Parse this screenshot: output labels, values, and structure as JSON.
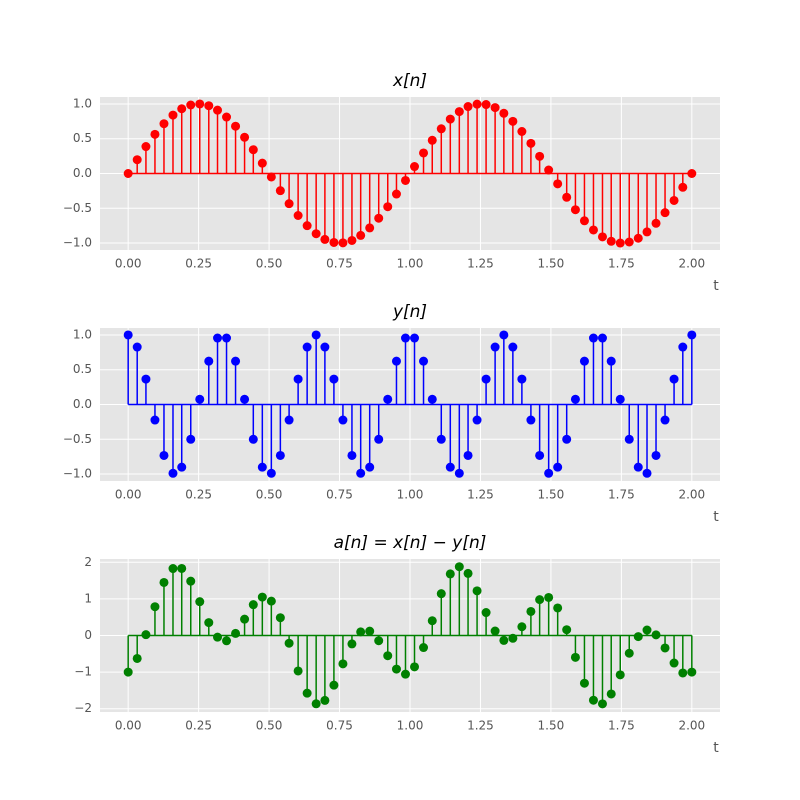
{
  "chart_data": [
    {
      "type": "stem",
      "title": "x[n]",
      "xlabel": "t",
      "x": [
        0,
        0.032,
        0.063,
        0.095,
        0.127,
        0.159,
        0.19,
        0.222,
        0.254,
        0.286,
        0.317,
        0.349,
        0.381,
        0.413,
        0.444,
        0.476,
        0.508,
        0.54,
        0.571,
        0.603,
        0.635,
        0.667,
        0.698,
        0.73,
        0.762,
        0.794,
        0.825,
        0.857,
        0.889,
        0.921,
        0.952,
        0.984,
        1.016,
        1.048,
        1.079,
        1.111,
        1.143,
        1.175,
        1.206,
        1.238,
        1.27,
        1.302,
        1.333,
        1.365,
        1.397,
        1.429,
        1.46,
        1.492,
        1.524,
        1.556,
        1.587,
        1.619,
        1.651,
        1.683,
        1.714,
        1.746,
        1.778,
        1.81,
        1.841,
        1.873,
        1.905,
        1.937,
        1.968,
        2
      ],
      "series": [
        {
          "color": "#ff0000",
          "values": [
            0,
            0.198,
            0.388,
            0.563,
            0.716,
            0.84,
            0.931,
            0.985,
            1.0,
            0.975,
            0.911,
            0.812,
            0.68,
            0.521,
            0.342,
            0.149,
            -0.05,
            -0.247,
            -0.434,
            -0.604,
            -0.75,
            -0.866,
            -0.948,
            -0.992,
            -0.997,
            -0.963,
            -0.89,
            -0.782,
            -0.643,
            -0.478,
            -0.295,
            -0.1,
            0.1,
            0.295,
            0.478,
            0.643,
            0.782,
            0.89,
            0.963,
            0.997,
            0.992,
            0.948,
            0.866,
            0.75,
            0.604,
            0.434,
            0.247,
            0.05,
            -0.149,
            -0.342,
            -0.521,
            -0.68,
            -0.812,
            -0.911,
            -0.975,
            -1.0,
            -0.985,
            -0.931,
            -0.84,
            -0.716,
            -0.563,
            -0.388,
            -0.198,
            0
          ]
        }
      ],
      "xlim": [
        -0.1,
        2.1
      ],
      "ylim": [
        -1.1,
        1.1
      ],
      "xticks": [
        {
          "value": 0,
          "label": "0.00"
        },
        {
          "value": 0.25,
          "label": "0.25"
        },
        {
          "value": 0.5,
          "label": "0.50"
        },
        {
          "value": 0.75,
          "label": "0.75"
        },
        {
          "value": 1,
          "label": "1.00"
        },
        {
          "value": 1.25,
          "label": "1.25"
        },
        {
          "value": 1.5,
          "label": "1.50"
        },
        {
          "value": 1.75,
          "label": "1.75"
        },
        {
          "value": 2,
          "label": "2.00"
        }
      ],
      "yticks": [
        {
          "value": -1,
          "label": "−1.0"
        },
        {
          "value": -0.5,
          "label": "−0.5"
        },
        {
          "value": 0,
          "label": "0.0"
        },
        0.5,
        {
          "value": 1,
          "label": "1.0"
        }
      ],
      "grid": true
    },
    {
      "type": "stem",
      "title": "y[n]",
      "xlabel": "t",
      "x": [
        0,
        0.032,
        0.063,
        0.095,
        0.127,
        0.159,
        0.19,
        0.222,
        0.254,
        0.286,
        0.317,
        0.349,
        0.381,
        0.413,
        0.444,
        0.476,
        0.508,
        0.54,
        0.571,
        0.603,
        0.635,
        0.667,
        0.698,
        0.73,
        0.762,
        0.794,
        0.825,
        0.857,
        0.889,
        0.921,
        0.952,
        0.984,
        1.016,
        1.048,
        1.079,
        1.111,
        1.143,
        1.175,
        1.206,
        1.238,
        1.27,
        1.302,
        1.333,
        1.365,
        1.397,
        1.429,
        1.46,
        1.492,
        1.524,
        1.556,
        1.587,
        1.619,
        1.651,
        1.683,
        1.714,
        1.746,
        1.778,
        1.81,
        1.841,
        1.873,
        1.905,
        1.937,
        1.968,
        2
      ],
      "series": [
        {
          "color": "#0000ff",
          "values": [
            1,
            0.826,
            0.365,
            -0.223,
            -0.733,
            -0.989,
            -0.901,
            -0.5,
            0.075,
            0.623,
            0.956,
            0.956,
            0.623,
            0.075,
            -0.5,
            -0.901,
            -0.989,
            -0.733,
            -0.223,
            0.365,
            0.826,
            1,
            0.826,
            0.365,
            -0.223,
            -0.733,
            -0.989,
            -0.901,
            -0.5,
            0.075,
            0.623,
            0.956,
            0.956,
            0.623,
            0.075,
            -0.5,
            -0.901,
            -0.989,
            -0.733,
            -0.223,
            0.365,
            0.826,
            1,
            0.826,
            0.365,
            -0.223,
            -0.733,
            -0.989,
            -0.901,
            -0.5,
            0.075,
            0.623,
            0.956,
            0.956,
            0.623,
            0.075,
            -0.5,
            -0.901,
            -0.989,
            -0.733,
            -0.223,
            0.365,
            0.826,
            1
          ]
        }
      ],
      "xlim": [
        -0.1,
        2.1
      ],
      "ylim": [
        -1.1,
        1.1
      ],
      "xticks": [
        {
          "value": 0,
          "label": "0.00"
        },
        {
          "value": 0.25,
          "label": "0.25"
        },
        {
          "value": 0.5,
          "label": "0.50"
        },
        {
          "value": 0.75,
          "label": "0.75"
        },
        {
          "value": 1,
          "label": "1.00"
        },
        {
          "value": 1.25,
          "label": "1.25"
        },
        {
          "value": 1.5,
          "label": "1.50"
        },
        {
          "value": 1.75,
          "label": "1.75"
        },
        {
          "value": 2,
          "label": "2.00"
        }
      ],
      "yticks": [
        {
          "value": -1,
          "label": "−1.0"
        },
        {
          "value": -0.5,
          "label": "−0.5"
        },
        {
          "value": 0,
          "label": "0.0"
        },
        0.5,
        {
          "value": 1,
          "label": "1.0"
        }
      ],
      "grid": true
    },
    {
      "type": "stem",
      "title": "a[n] = x[n] − y[n]",
      "xlabel": "t",
      "x": [
        0,
        0.032,
        0.063,
        0.095,
        0.127,
        0.159,
        0.19,
        0.222,
        0.254,
        0.286,
        0.317,
        0.349,
        0.381,
        0.413,
        0.444,
        0.476,
        0.508,
        0.54,
        0.571,
        0.603,
        0.635,
        0.667,
        0.698,
        0.73,
        0.762,
        0.794,
        0.825,
        0.857,
        0.889,
        0.921,
        0.952,
        0.984,
        1.016,
        1.048,
        1.079,
        1.111,
        1.143,
        1.175,
        1.206,
        1.238,
        1.27,
        1.302,
        1.333,
        1.365,
        1.397,
        1.429,
        1.46,
        1.492,
        1.524,
        1.556,
        1.587,
        1.619,
        1.651,
        1.683,
        1.714,
        1.746,
        1.778,
        1.81,
        1.841,
        1.873,
        1.905,
        1.937,
        1.968,
        2
      ],
      "series": [
        {
          "color": "#008000",
          "values": [
            -1,
            -0.628,
            0.023,
            0.786,
            1.449,
            1.829,
            1.832,
            1.485,
            0.925,
            0.352,
            -0.045,
            -0.144,
            0.057,
            0.446,
            0.842,
            1.05,
            0.939,
            0.486,
            -0.211,
            -0.969,
            -1.576,
            -1.866,
            -1.774,
            -1.357,
            -0.774,
            -0.23,
            0.099,
            0.119,
            -0.143,
            -0.553,
            -0.918,
            -1.056,
            -0.856,
            -0.328,
            0.403,
            1.143,
            1.683,
            1.879,
            1.696,
            1.22,
            0.627,
            0.122,
            -0.134,
            -0.076,
            0.239,
            0.657,
            0.98,
            1.039,
            0.752,
            0.158,
            -0.596,
            -1.303,
            -1.768,
            -1.867,
            -1.598,
            -1.075,
            -0.485,
            -0.03,
            0.149,
            0.017,
            -0.34,
            -0.753,
            -1.024,
            -1
          ]
        }
      ],
      "xlim": [
        -0.1,
        2.1
      ],
      "ylim": [
        -2.09,
        2.09
      ],
      "xticks": [
        {
          "value": 0,
          "label": "0.00"
        },
        {
          "value": 0.25,
          "label": "0.25"
        },
        {
          "value": 0.5,
          "label": "0.50"
        },
        {
          "value": 0.75,
          "label": "0.75"
        },
        {
          "value": 1,
          "label": "1.00"
        },
        {
          "value": 1.25,
          "label": "1.25"
        },
        {
          "value": 1.5,
          "label": "1.50"
        },
        {
          "value": 1.75,
          "label": "1.75"
        },
        {
          "value": 2,
          "label": "2.00"
        }
      ],
      "yticks": [
        {
          "value": -2,
          "label": "−2"
        },
        {
          "value": -1,
          "label": "−1"
        },
        0,
        1,
        2
      ],
      "grid": true
    }
  ]
}
